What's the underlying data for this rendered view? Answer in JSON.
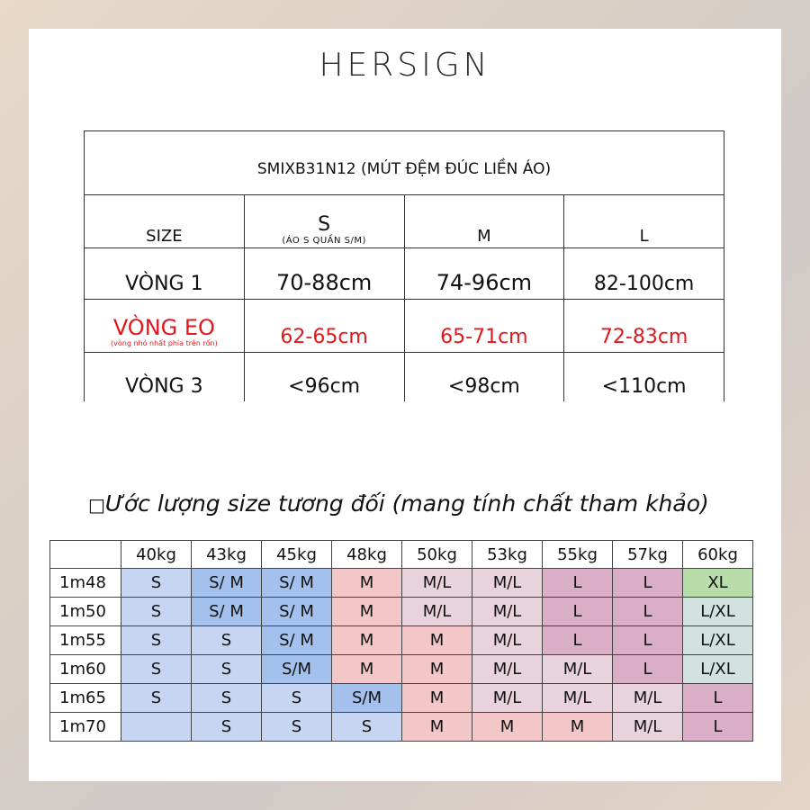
{
  "brand": "HERSIGN",
  "colors": {
    "red_text": "#e4161b",
    "S": "#c6d5f2",
    "S_M": "#a4c1ee",
    "M": "#f3c7c7",
    "M_L": "#e8d2dc",
    "L": "#d9aec6",
    "XL": "#b8dcaa",
    "L_XL": "#d2e2df",
    "empty": "#ffffff"
  },
  "size_table": {
    "title": "SMIXB31N12 (MÚT ĐỆM ĐÚC LIỀN ÁO)",
    "header": {
      "label": "SIZE",
      "s": "S",
      "s_note": "(ÁO S QUẦN S/M)",
      "m": "M",
      "l": "L"
    },
    "rows": [
      {
        "label": "VÒNG 1",
        "note": "",
        "s": "70-88cm",
        "m": "74-96cm",
        "l": "82-100cm",
        "red": false
      },
      {
        "label": "VÒNG EO",
        "note": "(vòng nhỏ nhất phía trên rốn)",
        "s": "62-65cm",
        "m": "65-71cm",
        "l": "72-83cm",
        "red": true
      },
      {
        "label": "VÒNG 3",
        "note": "",
        "s": "<96cm",
        "m": "<98cm",
        "l": "<110cm",
        "red": false
      }
    ]
  },
  "estimate": {
    "heading_glyph": "□",
    "heading": "Ước lượng size tương đối (mang tính chất tham khảo)",
    "weights": [
      "40kg",
      "43kg",
      "45kg",
      "48kg",
      "50kg",
      "53kg",
      "55kg",
      "57kg",
      "60kg"
    ],
    "rows": [
      {
        "height": "1m48",
        "cells": [
          {
            "v": "S",
            "c": "S"
          },
          {
            "v": "S/ M",
            "c": "S_M"
          },
          {
            "v": "S/ M",
            "c": "S_M"
          },
          {
            "v": "M",
            "c": "M"
          },
          {
            "v": "M/L",
            "c": "M_L"
          },
          {
            "v": "M/L",
            "c": "M_L"
          },
          {
            "v": "L",
            "c": "L"
          },
          {
            "v": "L",
            "c": "L"
          },
          {
            "v": "XL",
            "c": "XL"
          }
        ]
      },
      {
        "height": "1m50",
        "cells": [
          {
            "v": "S",
            "c": "S"
          },
          {
            "v": "S/ M",
            "c": "S_M"
          },
          {
            "v": "S/ M",
            "c": "S_M"
          },
          {
            "v": "M",
            "c": "M"
          },
          {
            "v": "M/L",
            "c": "M_L"
          },
          {
            "v": "M/L",
            "c": "M_L"
          },
          {
            "v": "L",
            "c": "L"
          },
          {
            "v": "L",
            "c": "L"
          },
          {
            "v": "L/XL",
            "c": "L_XL"
          }
        ]
      },
      {
        "height": "1m55",
        "cells": [
          {
            "v": "S",
            "c": "S"
          },
          {
            "v": "S",
            "c": "S"
          },
          {
            "v": "S/ M",
            "c": "S_M"
          },
          {
            "v": "M",
            "c": "M"
          },
          {
            "v": "M",
            "c": "M"
          },
          {
            "v": "M/L",
            "c": "M_L"
          },
          {
            "v": "L",
            "c": "L"
          },
          {
            "v": "L",
            "c": "L"
          },
          {
            "v": "L/XL",
            "c": "L_XL"
          }
        ]
      },
      {
        "height": "1m60",
        "cells": [
          {
            "v": "S",
            "c": "S"
          },
          {
            "v": "S",
            "c": "S"
          },
          {
            "v": "S/M",
            "c": "S_M"
          },
          {
            "v": "M",
            "c": "M"
          },
          {
            "v": "M",
            "c": "M"
          },
          {
            "v": "M/L",
            "c": "M_L"
          },
          {
            "v": "M/L",
            "c": "M_L"
          },
          {
            "v": "L",
            "c": "L"
          },
          {
            "v": "L/XL",
            "c": "L_XL"
          }
        ]
      },
      {
        "height": "1m65",
        "cells": [
          {
            "v": "S",
            "c": "S"
          },
          {
            "v": "S",
            "c": "S"
          },
          {
            "v": "S",
            "c": "S"
          },
          {
            "v": "S/M",
            "c": "S_M"
          },
          {
            "v": "M",
            "c": "M"
          },
          {
            "v": "M/L",
            "c": "M_L"
          },
          {
            "v": "M/L",
            "c": "M_L"
          },
          {
            "v": "M/L",
            "c": "M_L"
          },
          {
            "v": "L",
            "c": "L"
          }
        ]
      },
      {
        "height": "1m70",
        "cells": [
          {
            "v": "",
            "c": "S"
          },
          {
            "v": "S",
            "c": "S"
          },
          {
            "v": "S",
            "c": "S"
          },
          {
            "v": "S",
            "c": "S"
          },
          {
            "v": "M",
            "c": "M"
          },
          {
            "v": "M",
            "c": "M"
          },
          {
            "v": "M",
            "c": "M"
          },
          {
            "v": "M/L",
            "c": "M_L"
          },
          {
            "v": "L",
            "c": "L"
          }
        ]
      }
    ]
  }
}
